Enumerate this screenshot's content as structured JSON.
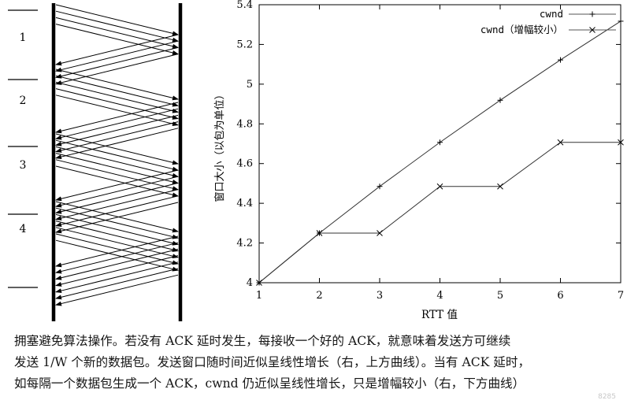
{
  "timeline": {
    "rtt_labels": [
      "1",
      "2",
      "3",
      "4"
    ]
  },
  "chart_data": {
    "type": "line",
    "title": "",
    "xlabel": "RTT 值",
    "ylabel": "窗口大小（以包为单位）",
    "xlim": [
      1,
      7
    ],
    "ylim": [
      4,
      5.4
    ],
    "xticks": [
      1,
      2,
      3,
      4,
      5,
      6,
      7
    ],
    "yticks": [
      4,
      4.2,
      4.4,
      4.6,
      4.8,
      5,
      5.2,
      5.4
    ],
    "ytick_labels": [
      "4",
      "4.2",
      "4.4",
      "4.6",
      "4.8",
      "5",
      "5.2",
      "5.4"
    ],
    "grid": false,
    "legend_position": "top-right",
    "series": [
      {
        "name": "cwnd",
        "marker": "plus",
        "x": [
          1,
          2,
          3,
          4,
          5,
          6,
          7
        ],
        "y": [
          4.0,
          4.25,
          4.485,
          4.707,
          4.919,
          5.122,
          5.317
        ]
      },
      {
        "name": "cwnd（增幅较小）",
        "marker": "cross",
        "x": [
          1,
          2,
          3,
          4,
          5,
          6,
          7
        ],
        "y": [
          4.0,
          4.25,
          4.25,
          4.485,
          4.485,
          4.707,
          4.707
        ]
      }
    ]
  },
  "caption": {
    "line1": "拥塞避免算法操作。若没有 ACK 延时发生，每接收一个好的 ACK，就意味着发送方可继续",
    "line2": "发送 1/W 个新的数据包。发送窗口随时间近似呈线性增长（右，上方曲线）。当有 ACK 延时，",
    "line3": "如每隔一个数据包生成一个 ACK，cwnd 仍近似呈线性增长，只是增幅较小（右，下方曲线）"
  },
  "watermark": "8285"
}
